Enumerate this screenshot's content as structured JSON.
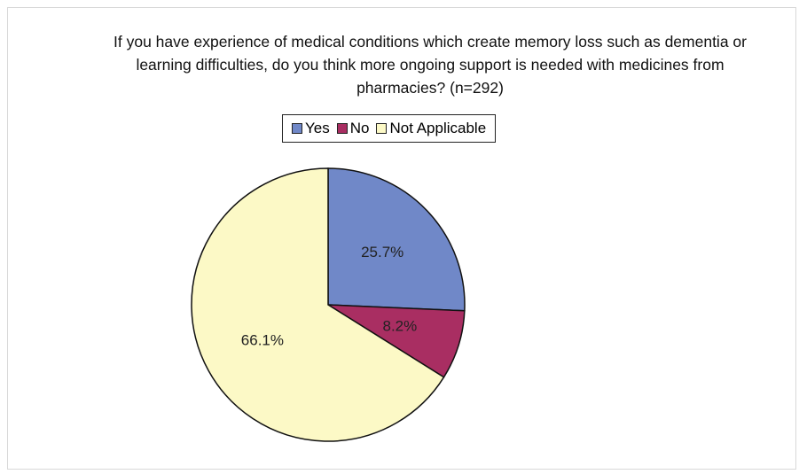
{
  "chart_data": {
    "type": "pie",
    "title": "If you have experience of medical conditions which create memory loss such as dementia or learning difficulties, do you think more ongoing support is needed with medicines from pharmacies? (n=292)",
    "categories": [
      "Yes",
      "No",
      "Not Applicable"
    ],
    "values": [
      25.7,
      8.2,
      66.1
    ],
    "value_labels": [
      "25.7%",
      "8.2%",
      "66.1%"
    ],
    "colors": [
      "#7088c8",
      "#a92e62",
      "#fcf9c6"
    ],
    "legend": "top"
  }
}
